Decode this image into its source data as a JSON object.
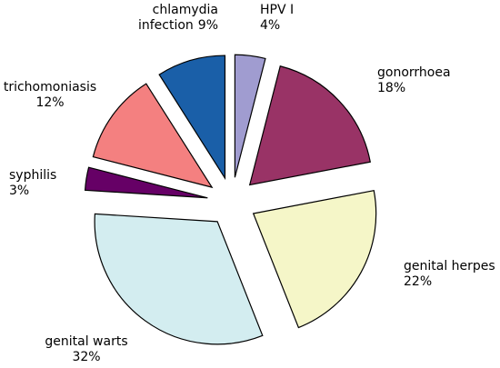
{
  "chart_data": {
    "type": "pie",
    "categories": [
      "HPV I",
      "gonorrhoea",
      "genital herpes",
      "genital warts",
      "syphilis",
      "trichomoniasis",
      "chlamydia infection"
    ],
    "values": [
      4,
      18,
      22,
      32,
      3,
      12,
      9
    ],
    "value_labels": [
      "4%",
      "18%",
      "22%",
      "32%",
      "3%",
      "12%",
      "9%"
    ],
    "colors": [
      "#a09cd0",
      "#993366",
      "#f5f6c8",
      "#d3edf0",
      "#660066",
      "#f48080",
      "#1a5fa8"
    ]
  }
}
